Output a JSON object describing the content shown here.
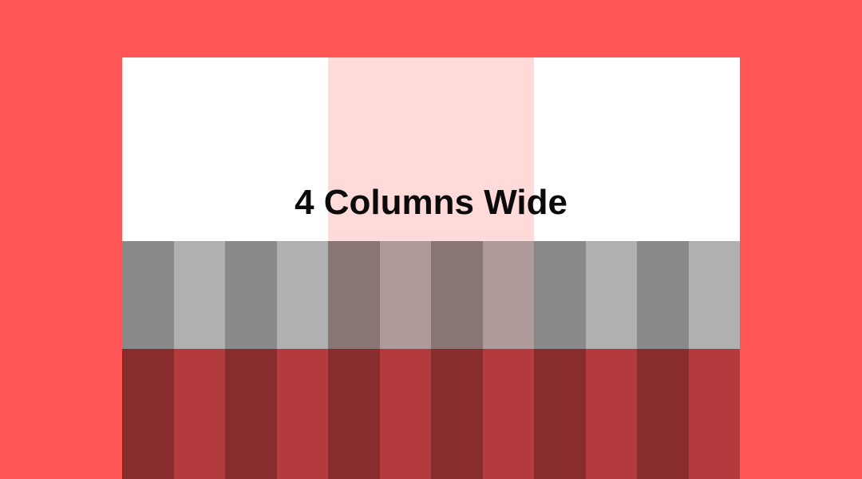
{
  "heading": "4 Columns Wide",
  "grid": {
    "total_columns": 12,
    "highlighted_columns": [
      5,
      6,
      7,
      8
    ]
  },
  "colors": {
    "background": "#ff5555",
    "panel": "#ffffff",
    "highlight": "#fedad9",
    "gray_dark": "#898989",
    "gray_light": "#b0b0b0",
    "gray_dark_highlight": "#897574",
    "gray_light_highlight": "#b09a99",
    "red_dark": "#882c2e",
    "red_light": "#b43b3d"
  }
}
